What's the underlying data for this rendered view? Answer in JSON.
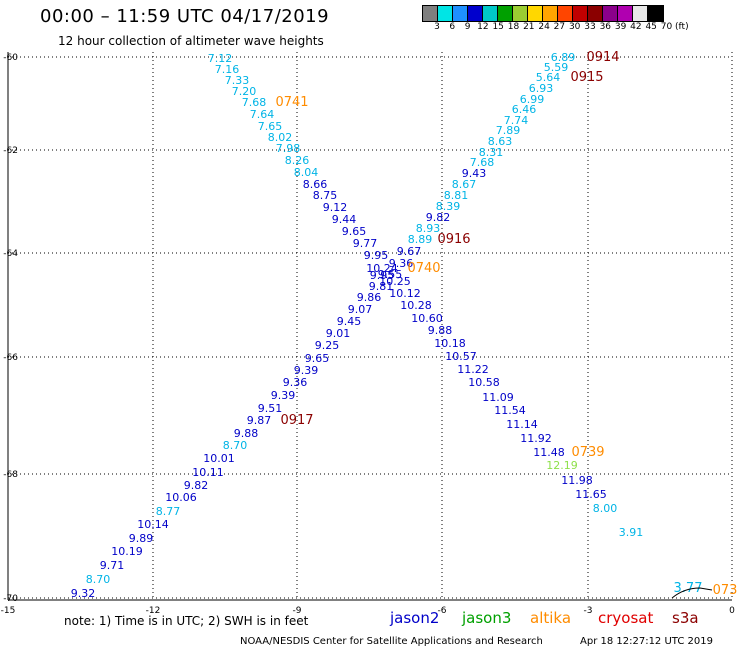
{
  "title": "00:00 – 11:59 UTC 04/17/2019",
  "subtitle": "12 hour collection of altimeter wave heights",
  "legend": {
    "colors": [
      "#7f7f7f",
      "#00e5e5",
      "#1e90ff",
      "#0000cd",
      "#00c8c8",
      "#00a000",
      "#9acd32",
      "#ffd700",
      "#ffa500",
      "#ff4500",
      "#c00000",
      "#8b0000",
      "#8b008b",
      "#b000b0",
      "#e8e8e8",
      "#000000"
    ],
    "labels": [
      "3",
      "6",
      "9",
      "12",
      "15",
      "18",
      "21",
      "24",
      "27",
      "30",
      "33",
      "36",
      "39",
      "42",
      "45",
      "70",
      "(ft)"
    ]
  },
  "axes": {
    "y_ticks": [
      "-60",
      "-62",
      "-64",
      "-66",
      "-68",
      "-70"
    ],
    "x_ticks": [
      "-15",
      "-12",
      "-9",
      "-6",
      "-3",
      "0"
    ]
  },
  "track_a": {
    "points": [
      {
        "v": "7.12",
        "c": "#00b4e6"
      },
      {
        "v": "7.16",
        "c": "#00b4e6"
      },
      {
        "v": "7.33",
        "c": "#00b4e6"
      },
      {
        "v": "7.20",
        "c": "#00b4e6"
      },
      {
        "v": "7.68",
        "c": "#00b4e6"
      },
      {
        "v": "7.64",
        "c": "#00b4e6"
      },
      {
        "v": "7.65",
        "c": "#00b4e6"
      },
      {
        "v": "8.02",
        "c": "#00b4e6"
      },
      {
        "v": "7.98",
        "c": "#00b4e6"
      },
      {
        "v": "8.26",
        "c": "#00b4e6"
      },
      {
        "v": "8.04",
        "c": "#00b4e6"
      },
      {
        "v": "8.66",
        "c": "#0000c8"
      },
      {
        "v": "8.75",
        "c": "#0000c8"
      },
      {
        "v": "9.12",
        "c": "#0000c8"
      },
      {
        "v": "9.44",
        "c": "#0000c8"
      },
      {
        "v": "9.65",
        "c": "#0000c8"
      },
      {
        "v": "9.77",
        "c": "#0000c8"
      },
      {
        "v": "9.95",
        "c": "#0000c8"
      },
      {
        "v": "10.24",
        "c": "#0000c8"
      },
      {
        "v": "9.95",
        "c": "#0000c8"
      },
      {
        "v": "10.25",
        "c": "#0000c8"
      },
      {
        "v": "10.12",
        "c": "#0000c8"
      },
      {
        "v": "10.28",
        "c": "#0000c8"
      },
      {
        "v": "10.60",
        "c": "#0000c8"
      },
      {
        "v": "9.88",
        "c": "#0000c8"
      },
      {
        "v": "10.18",
        "c": "#0000c8"
      },
      {
        "v": "10.57",
        "c": "#0000c8"
      },
      {
        "v": "11.22",
        "c": "#0000c8"
      },
      {
        "v": "10.58",
        "c": "#0000c8"
      },
      {
        "v": "11.09",
        "c": "#0000c8"
      },
      {
        "v": "11.54",
        "c": "#0000c8"
      },
      {
        "v": "11.14",
        "c": "#0000c8"
      },
      {
        "v": "11.92",
        "c": "#0000c8"
      },
      {
        "v": "11.48",
        "c": "#0000c8"
      },
      {
        "v": "12.19",
        "c": "#8ee04a"
      },
      {
        "v": "11.98",
        "c": "#0000c8"
      },
      {
        "v": "11.65",
        "c": "#0000c8"
      },
      {
        "v": "8.00",
        "c": "#00b4e6"
      },
      {
        "v": "3.91",
        "c": "#00b4e6"
      }
    ]
  },
  "track_b": {
    "points": [
      {
        "v": "6.89",
        "c": "#00b4e6"
      },
      {
        "v": "5.59",
        "c": "#00b4e6"
      },
      {
        "v": "5.64",
        "c": "#00b4e6"
      },
      {
        "v": "6.93",
        "c": "#00b4e6"
      },
      {
        "v": "6.99",
        "c": "#00b4e6"
      },
      {
        "v": "6.46",
        "c": "#00b4e6"
      },
      {
        "v": "7.74",
        "c": "#00b4e6"
      },
      {
        "v": "7.89",
        "c": "#00b4e6"
      },
      {
        "v": "8.63",
        "c": "#00b4e6"
      },
      {
        "v": "8.31",
        "c": "#00b4e6"
      },
      {
        "v": "7.68",
        "c": "#00b4e6"
      },
      {
        "v": "9.43",
        "c": "#0000c8"
      },
      {
        "v": "8.67",
        "c": "#00b4e6"
      },
      {
        "v": "8.81",
        "c": "#00b4e6"
      },
      {
        "v": "8.39",
        "c": "#00b4e6"
      },
      {
        "v": "9.82",
        "c": "#0000c8"
      },
      {
        "v": "8.93",
        "c": "#00b4e6"
      },
      {
        "v": "8.89",
        "c": "#00b4e6"
      },
      {
        "v": "9.67",
        "c": "#0000c8"
      },
      {
        "v": "9.36",
        "c": "#0000c8"
      },
      {
        "v": "9.55",
        "c": "#0000c8"
      },
      {
        "v": "9.81",
        "c": "#0000c8"
      },
      {
        "v": "9.86",
        "c": "#0000c8"
      },
      {
        "v": "9.07",
        "c": "#0000c8"
      },
      {
        "v": "9.45",
        "c": "#0000c8"
      },
      {
        "v": "9.01",
        "c": "#0000c8"
      },
      {
        "v": "9.25",
        "c": "#0000c8"
      },
      {
        "v": "9.65",
        "c": "#0000c8"
      },
      {
        "v": "9.39",
        "c": "#0000c8"
      },
      {
        "v": "9.36",
        "c": "#0000c8"
      },
      {
        "v": "9.39",
        "c": "#0000c8"
      },
      {
        "v": "9.51",
        "c": "#0000c8"
      },
      {
        "v": "9.87",
        "c": "#0000c8"
      },
      {
        "v": "9.88",
        "c": "#0000c8"
      },
      {
        "v": "8.70",
        "c": "#00b4e6"
      },
      {
        "v": "10.01",
        "c": "#0000c8"
      },
      {
        "v": "10.11",
        "c": "#0000c8"
      },
      {
        "v": "9.82",
        "c": "#0000c8"
      },
      {
        "v": "10.06",
        "c": "#0000c8"
      },
      {
        "v": "8.77",
        "c": "#00b4e6"
      },
      {
        "v": "10.14",
        "c": "#0000c8"
      },
      {
        "v": "9.89",
        "c": "#0000c8"
      },
      {
        "v": "10.19",
        "c": "#0000c8"
      },
      {
        "v": "9.71",
        "c": "#0000c8"
      },
      {
        "v": "8.70",
        "c": "#00b4e6"
      },
      {
        "v": "9.32",
        "c": "#0000c8"
      }
    ]
  },
  "time_labels": [
    {
      "t": "0914",
      "c": "#8b0000"
    },
    {
      "t": "0915",
      "c": "#8b0000"
    },
    {
      "t": "0741",
      "c": "#ff8c00"
    },
    {
      "t": "0916",
      "c": "#8b0000"
    },
    {
      "t": "0740",
      "c": "#ff8c00"
    },
    {
      "t": "0917",
      "c": "#8b0000"
    },
    {
      "t": "0739",
      "c": "#ff8c00"
    },
    {
      "t": "073",
      "c": "#ff8c00"
    },
    {
      "t": "3.77",
      "c": "#00b4e6"
    }
  ],
  "footer": {
    "note": "note: 1) Time is in UTC; 2) SWH is in feet",
    "satellites": [
      {
        "name": "jason2",
        "c": "#0000c8"
      },
      {
        "name": "jason3",
        "c": "#00a000"
      },
      {
        "name": "altika",
        "c": "#ff8c00"
      },
      {
        "name": "cryosat",
        "c": "#e00000"
      },
      {
        "name": "s3a",
        "c": "#8b0000"
      }
    ],
    "credit": "NOAA/NESDIS Center for Satellite Applications and Research",
    "timestamp": "Apr 18 12:27:12 UTC 2019"
  }
}
